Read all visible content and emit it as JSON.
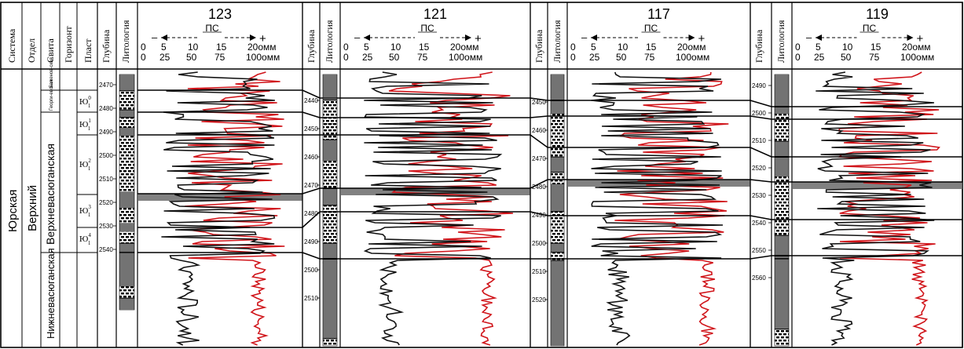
{
  "stratigraphy": {
    "headers": [
      "Система",
      "Отдел",
      "Свита",
      "Горизонт",
      "Пласт"
    ],
    "system": "Юрская",
    "series": "Верхний",
    "suite_upper": "Верхневасюганская",
    "suite_lower": "Нижневасюганская",
    "suite_bazhenov": "Баженов-ская",
    "suite_georgiev": "Георги-евская",
    "layers": [
      {
        "name": "Ю",
        "sup": "0",
        "sub": "1"
      },
      {
        "name": "Ю",
        "sup": "1",
        "sub": "1"
      },
      {
        "name": "Ю",
        "sup": "2",
        "sub": "1"
      },
      {
        "name": "Ю",
        "sup": "3",
        "sub": "1"
      },
      {
        "name": "Ю",
        "sup": "4",
        "sub": "1"
      }
    ]
  },
  "column_labels": {
    "depth": "Глубина",
    "lithology": "Литология"
  },
  "log_header": {
    "ps": "ПС",
    "minus": "–",
    "plus": "+",
    "ps_scale": [
      "5",
      "10",
      "15"
    ],
    "res_scale_top": [
      "0",
      "5",
      "10",
      "15",
      "20омм"
    ],
    "res_scale_bottom": [
      "0",
      "25",
      "50",
      "75",
      "100омм"
    ]
  },
  "wells": [
    {
      "id": "123",
      "depth_ticks": [
        "2470",
        "2480",
        "2490",
        "2500",
        "2510",
        "2520",
        "2530",
        "2540"
      ]
    },
    {
      "id": "121",
      "depth_ticks": [
        "2440",
        "2450",
        "2460",
        "2470",
        "2480",
        "2490",
        "2500",
        "2510"
      ]
    },
    {
      "id": "117",
      "depth_ticks": [
        "2450",
        "2460",
        "2470",
        "2480",
        "2490",
        "2500",
        "2510",
        "2520"
      ]
    },
    {
      "id": "119",
      "depth_ticks": [
        "2490",
        "2500",
        "2510",
        "2520",
        "2530",
        "2540",
        "2550",
        "2560"
      ]
    }
  ],
  "colors": {
    "ps_curve": "#111111",
    "resistivity_curve": "#d0141a",
    "coal_band": "#6b6b6b",
    "lines": "#000000"
  }
}
